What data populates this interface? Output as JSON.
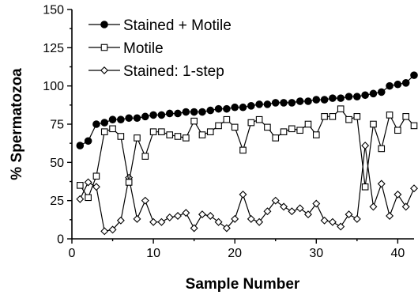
{
  "chart_data": {
    "type": "line",
    "xlabel": "Sample Number",
    "ylabel": "% Spermatozoa",
    "xlim": [
      0,
      42
    ],
    "ylim": [
      0,
      150
    ],
    "xticks": [
      0,
      10,
      20,
      30,
      40
    ],
    "yticks": [
      0,
      25,
      50,
      75,
      100,
      125,
      150
    ],
    "legend_position": "top-left",
    "x": [
      1,
      2,
      3,
      4,
      5,
      6,
      7,
      8,
      9,
      10,
      11,
      12,
      13,
      14,
      15,
      16,
      17,
      18,
      19,
      20,
      21,
      22,
      23,
      24,
      25,
      26,
      27,
      28,
      29,
      30,
      31,
      32,
      33,
      34,
      35,
      36,
      37,
      38,
      39,
      40,
      41,
      42
    ],
    "series": [
      {
        "name": "Stained + Motile",
        "marker": "filled-circle",
        "values": [
          61,
          64,
          75,
          76,
          78,
          78,
          79,
          79,
          80,
          81,
          81,
          82,
          82,
          83,
          83,
          83,
          84,
          85,
          85,
          86,
          86,
          87,
          88,
          88,
          89,
          89,
          89,
          90,
          90,
          91,
          91,
          92,
          92,
          93,
          93,
          94,
          95,
          96,
          100,
          101,
          102,
          107
        ]
      },
      {
        "name": "Motile",
        "marker": "open-square",
        "values": [
          35,
          27,
          41,
          70,
          72,
          67,
          37,
          66,
          54,
          70,
          70,
          68,
          67,
          66,
          77,
          68,
          70,
          74,
          78,
          73,
          58,
          76,
          78,
          73,
          66,
          70,
          72,
          71,
          75,
          68,
          80,
          80,
          85,
          78,
          80,
          34,
          75,
          59,
          81,
          71,
          80,
          74
        ]
      },
      {
        "name": "Stained: 1-step",
        "marker": "open-diamond",
        "values": [
          26,
          37,
          34,
          5,
          6,
          12,
          40,
          13,
          25,
          11,
          11,
          14,
          15,
          17,
          7,
          16,
          15,
          11,
          7,
          13,
          29,
          13,
          11,
          18,
          25,
          21,
          18,
          20,
          16,
          23,
          12,
          11,
          8,
          16,
          13,
          61,
          21,
          36,
          15,
          29,
          21,
          33
        ]
      }
    ]
  }
}
